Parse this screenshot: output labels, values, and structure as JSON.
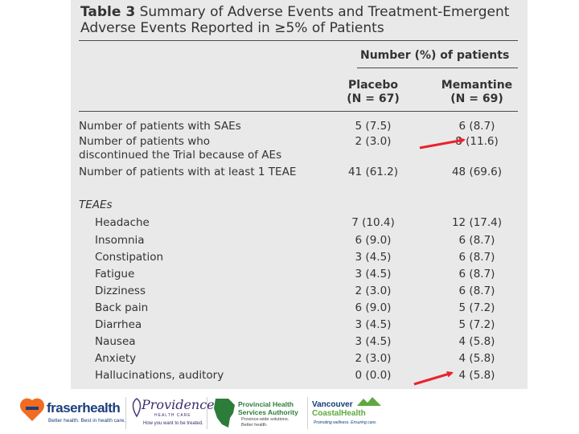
{
  "table": {
    "number_label": "Table 3",
    "title_line1": "Summary of Adverse Events and Treatment-Emergent",
    "title_line2": "Adverse Events Reported in ≥5% of Patients",
    "group_header": "Number (%) of patients",
    "placebo_label": "Placebo",
    "placebo_n": "(N = 67)",
    "memantine_label": "Memantine",
    "memantine_n": "(N = 69)",
    "summary_rows": [
      {
        "label": "Number of patients with SAEs",
        "placebo": "5 (7.5)",
        "memantine": "6 (8.7)"
      },
      {
        "label_line1": "Number of patients who",
        "label_line2": "discontinued the Trial because of AEs",
        "placebo": "2 (3.0)",
        "memantine": "8 (11.6)"
      },
      {
        "label": "Number of patients with at least 1 TEAE",
        "placebo": "41 (61.2)",
        "memantine": "48 (69.6)"
      }
    ],
    "teae_heading": "TEAEs",
    "teae_rows": [
      {
        "label": "Headache",
        "placebo": "7 (10.4)",
        "memantine": "12 (17.4)"
      },
      {
        "label": "Insomnia",
        "placebo": "6 (9.0)",
        "memantine": "6 (8.7)"
      },
      {
        "label": "Constipation",
        "placebo": "3 (4.5)",
        "memantine": "6 (8.7)"
      },
      {
        "label": "Fatigue",
        "placebo": "3 (4.5)",
        "memantine": "6 (8.7)"
      },
      {
        "label": "Dizziness",
        "placebo": "2 (3.0)",
        "memantine": "6 (8.7)"
      },
      {
        "label": "Back pain",
        "placebo": "6 (9.0)",
        "memantine": "5 (7.2)"
      },
      {
        "label": "Diarrhea",
        "placebo": "3 (4.5)",
        "memantine": "5 (7.2)"
      },
      {
        "label": "Nausea",
        "placebo": "3 (4.5)",
        "memantine": "4 (5.8)"
      },
      {
        "label": "Anxiety",
        "placebo": "2 (3.0)",
        "memantine": "4 (5.8)"
      },
      {
        "label": "Hallucinations, auditory",
        "placebo": "0 (0.0)",
        "memantine": "4 (5.8)"
      }
    ]
  },
  "footer": {
    "fraser_name": "fraserhealth",
    "fraser_tagline": "Better health. Best in health care.",
    "providence_name": "Providence",
    "providence_sub": "HEALTH CARE",
    "providence_tagline": "How you want to be treated.",
    "phsa_line1": "Provincial Health",
    "phsa_line2": "Services Authority",
    "phsa_tagline1": "Province-wide solutions.",
    "phsa_tagline2": "Better health.",
    "vch_line1": "Vancouver",
    "vch_line2": "CoastalHealth",
    "vch_tagline": "Promoting wellness. Ensuring care."
  },
  "colors": {
    "panel": "#e9e9e9",
    "arrow": "#e8232e",
    "fraser_orange": "#f26b21",
    "fraser_blue": "#1b3f7c",
    "phsa_green": "#2c7c3a",
    "vch_blue": "#0b3c7d",
    "vch_green": "#5ea83f"
  }
}
